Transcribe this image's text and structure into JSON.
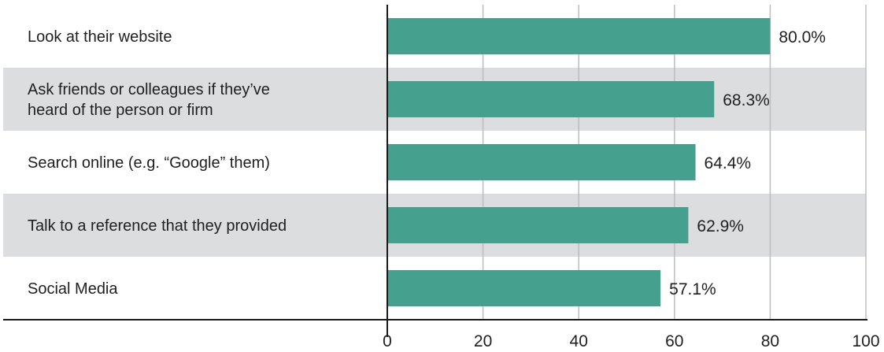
{
  "chart_data": {
    "type": "bar",
    "orientation": "horizontal",
    "categories": [
      [
        "Look at their website"
      ],
      [
        "Ask friends or colleagues if they’ve",
        "heard of the person or firm"
      ],
      [
        "Search online (e.g. “Google” them)"
      ],
      [
        "Talk to a reference that they provided"
      ],
      [
        "Social Media"
      ]
    ],
    "values": [
      80.0,
      68.3,
      64.4,
      62.9,
      57.1
    ],
    "value_labels": [
      "80.0%",
      "68.3%",
      "64.4%",
      "62.9%",
      "57.1%"
    ],
    "xlim": [
      0,
      100
    ],
    "xticks": [
      0,
      20,
      40,
      60,
      80,
      100
    ],
    "xtick_labels": [
      "0",
      "20",
      "40",
      "60",
      "80",
      "100"
    ],
    "grid": true,
    "title": "",
    "xlabel": "",
    "ylabel": ""
  },
  "colors": {
    "bar": "#46a08e",
    "band": "#dcdddf",
    "grid": "#bdbdbd",
    "axis": "#1a1a1a",
    "text": "#1f1f1f"
  }
}
